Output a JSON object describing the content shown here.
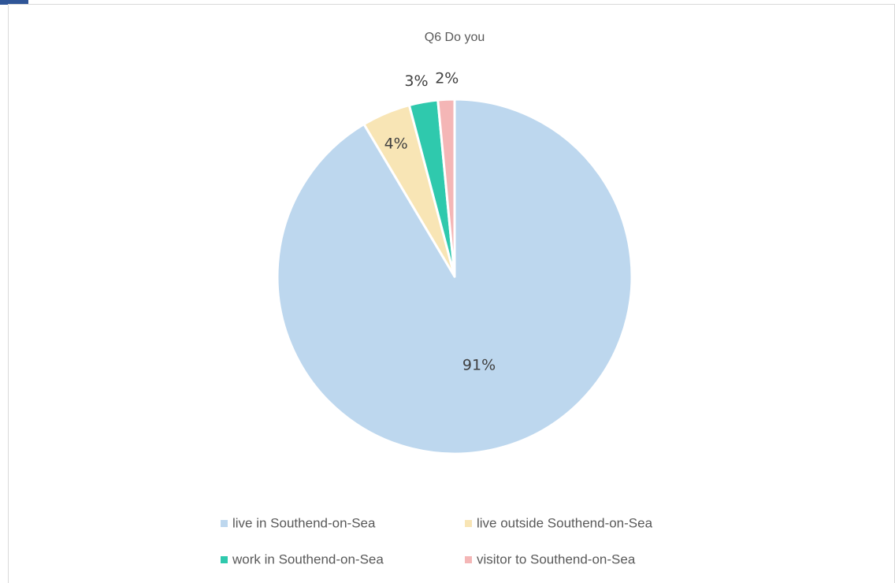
{
  "chart_data": {
    "type": "pie",
    "title": "Q6 Do you",
    "categories": [
      "live in Southend-on-Sea",
      "live outside Southend-on-Sea",
      "work in Southend-on-Sea",
      "visitor to Southend-on-Sea"
    ],
    "values": [
      91,
      4.4,
      2.6,
      1.5
    ],
    "labels": [
      "91%",
      "4%",
      "3%",
      "2%"
    ],
    "colors": [
      "#bdd7ee",
      "#f8e5b5",
      "#2fc9ad",
      "#f4b6b6"
    ],
    "legend_position": "bottom"
  }
}
